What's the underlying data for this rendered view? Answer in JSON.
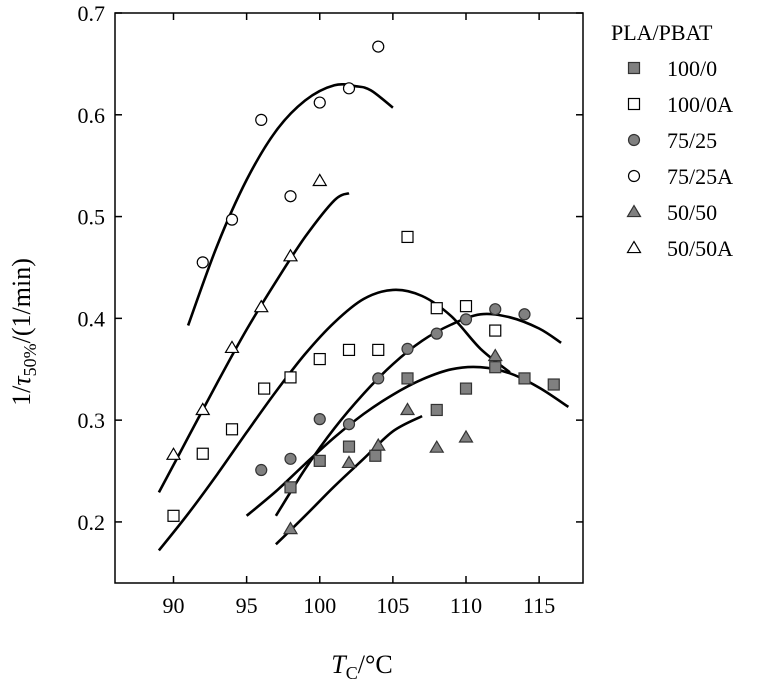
{
  "chart_data": {
    "type": "scatter",
    "title": "",
    "xlabel_main": "T",
    "xlabel_sub": "C",
    "xlabel_unit": "/°C",
    "ylabel_pre": "1/",
    "ylabel_tau": "τ",
    "ylabel_sub": "50%",
    "ylabel_unit": "/(1/min)",
    "xlim": [
      86,
      118
    ],
    "ylim": [
      0.14,
      0.7
    ],
    "xticks": [
      90,
      95,
      100,
      105,
      110,
      115
    ],
    "yticks": [
      0.2,
      0.3,
      0.4,
      0.5,
      0.6,
      0.7
    ],
    "legend": {
      "title": "PLA/PBAT",
      "position": "right"
    },
    "series": [
      {
        "name": "100/0",
        "marker": "square",
        "filled": true,
        "color": "#808080",
        "points": [
          [
            98,
            0.234
          ],
          [
            100,
            0.26
          ],
          [
            102,
            0.274
          ],
          [
            103.8,
            0.265
          ],
          [
            106,
            0.341
          ],
          [
            108,
            0.31
          ],
          [
            110,
            0.331
          ],
          [
            112,
            0.352
          ],
          [
            114,
            0.341
          ],
          [
            116,
            0.335
          ]
        ],
        "fit": [
          [
            97,
            0.178
          ],
          [
            99,
            0.206
          ],
          [
            101,
            0.235
          ],
          [
            103,
            0.262
          ],
          [
            105,
            0.289
          ],
          [
            107,
            0.304
          ]
        ]
      },
      {
        "name": "100/0A",
        "marker": "square",
        "filled": false,
        "color": "#000000",
        "points": [
          [
            90,
            0.206
          ],
          [
            92,
            0.267
          ],
          [
            94,
            0.291
          ],
          [
            96.2,
            0.331
          ],
          [
            98,
            0.342
          ],
          [
            100,
            0.36
          ],
          [
            102,
            0.369
          ],
          [
            104,
            0.369
          ],
          [
            106,
            0.48
          ],
          [
            108,
            0.41
          ],
          [
            110,
            0.412
          ],
          [
            112,
            0.388
          ]
        ],
        "fit": [
          [
            89,
            0.172
          ],
          [
            91,
            0.208
          ],
          [
            93,
            0.247
          ],
          [
            95,
            0.288
          ],
          [
            97,
            0.328
          ],
          [
            99,
            0.365
          ],
          [
            101,
            0.396
          ],
          [
            103,
            0.419
          ],
          [
            105,
            0.428
          ],
          [
            107,
            0.422
          ],
          [
            109,
            0.402
          ],
          [
            111,
            0.37
          ],
          [
            113,
            0.347
          ]
        ]
      },
      {
        "name": "75/25",
        "marker": "circle",
        "filled": true,
        "color": "#808080",
        "points": [
          [
            96,
            0.251
          ],
          [
            98,
            0.262
          ],
          [
            100,
            0.301
          ],
          [
            102,
            0.296
          ],
          [
            104,
            0.341
          ],
          [
            106,
            0.37
          ],
          [
            108,
            0.385
          ],
          [
            110,
            0.399
          ],
          [
            112,
            0.409
          ],
          [
            114,
            0.404
          ]
        ],
        "fit": [
          [
            97,
            0.206
          ],
          [
            99,
            0.252
          ],
          [
            101,
            0.292
          ],
          [
            103,
            0.326
          ],
          [
            105,
            0.355
          ],
          [
            107,
            0.378
          ],
          [
            109,
            0.394
          ],
          [
            111,
            0.404
          ],
          [
            113,
            0.401
          ],
          [
            115,
            0.39
          ],
          [
            116.5,
            0.376
          ]
        ]
      },
      {
        "name": "75/25A",
        "marker": "circle",
        "filled": false,
        "color": "#000000",
        "points": [
          [
            92,
            0.455
          ],
          [
            94,
            0.497
          ],
          [
            96,
            0.595
          ],
          [
            98,
            0.52
          ],
          [
            100,
            0.612
          ],
          [
            102,
            0.626
          ],
          [
            104,
            0.667
          ]
        ],
        "fit": [
          [
            91,
            0.393
          ],
          [
            93,
            0.472
          ],
          [
            95,
            0.536
          ],
          [
            97,
            0.584
          ],
          [
            99,
            0.614
          ],
          [
            101,
            0.629
          ],
          [
            102.5,
            0.628
          ],
          [
            103.5,
            0.624
          ],
          [
            105,
            0.607
          ]
        ]
      },
      {
        "name": "50/50",
        "marker": "triangle",
        "filled": true,
        "color": "#808080",
        "points": [
          [
            98,
            0.193
          ],
          [
            102,
            0.258
          ],
          [
            104,
            0.275
          ],
          [
            106,
            0.31
          ],
          [
            108,
            0.273
          ],
          [
            110,
            0.283
          ],
          [
            112,
            0.363
          ]
        ],
        "fit": [
          [
            95,
            0.206
          ],
          [
            97,
            0.23
          ],
          [
            99,
            0.257
          ],
          [
            101,
            0.283
          ],
          [
            103,
            0.306
          ],
          [
            105,
            0.325
          ],
          [
            107,
            0.34
          ],
          [
            109,
            0.35
          ],
          [
            111,
            0.352
          ],
          [
            113,
            0.346
          ],
          [
            115,
            0.332
          ],
          [
            117,
            0.313
          ]
        ]
      },
      {
        "name": "50/50A",
        "marker": "triangle",
        "filled": false,
        "color": "#000000",
        "points": [
          [
            90,
            0.266
          ],
          [
            92,
            0.31
          ],
          [
            94,
            0.371
          ],
          [
            96,
            0.411
          ],
          [
            98,
            0.461
          ],
          [
            100,
            0.535
          ]
        ],
        "fit": [
          [
            89,
            0.229
          ],
          [
            91,
            0.283
          ],
          [
            93,
            0.337
          ],
          [
            95,
            0.389
          ],
          [
            97,
            0.436
          ],
          [
            99,
            0.48
          ],
          [
            101,
            0.516
          ],
          [
            102,
            0.523
          ]
        ]
      }
    ]
  }
}
